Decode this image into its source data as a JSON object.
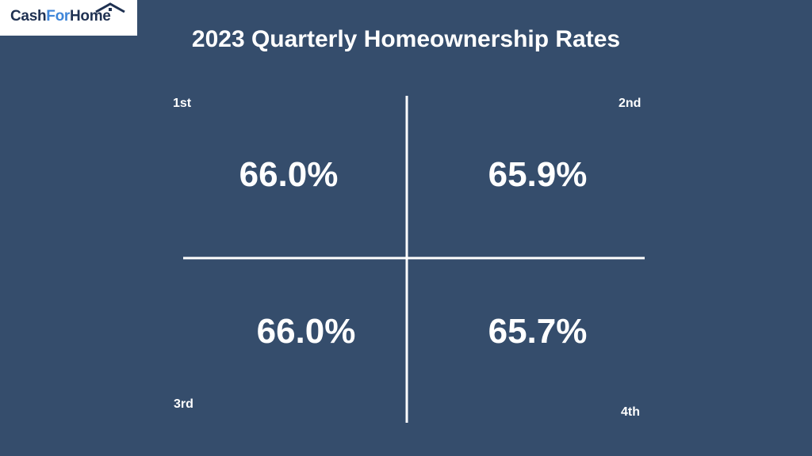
{
  "logo": {
    "part_a": "Cash",
    "part_b": "For",
    "part_c": "Home"
  },
  "colors": {
    "background": "#354d6c",
    "text": "#ffffff",
    "logo_dark": "#1f3152",
    "logo_accent": "#3f86d9"
  },
  "chart_data": {
    "type": "table",
    "title": "2023 Quarterly Homeownership Rates",
    "categories": [
      "1st",
      "2nd",
      "3rd",
      "4th"
    ],
    "values": [
      66.0,
      65.9,
      66.0,
      65.7
    ],
    "value_labels": [
      "66.0%",
      "65.9%",
      "66.0%",
      "65.7%"
    ],
    "unit": "%"
  }
}
